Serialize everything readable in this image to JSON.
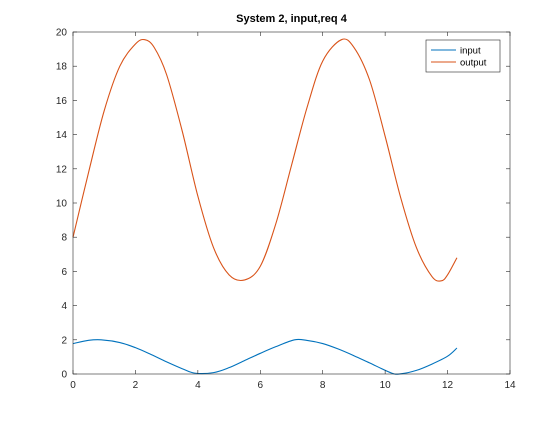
{
  "chart_data": {
    "type": "line",
    "title": "System 2, input,req 4",
    "xlabel": "",
    "ylabel": "",
    "xlim": [
      0,
      14
    ],
    "ylim": [
      0,
      20
    ],
    "xticks": [
      0,
      2,
      4,
      6,
      8,
      10,
      12,
      14
    ],
    "yticks": [
      0,
      2,
      4,
      6,
      8,
      10,
      12,
      14,
      16,
      18,
      20
    ],
    "grid": false,
    "box": true,
    "legend_location": "top-right",
    "series": [
      {
        "name": "input",
        "color": "#0072BD",
        "x": [
          0,
          0.5,
          0.9,
          1.5,
          2,
          2.5,
          3,
          3.5,
          3.9,
          4.5,
          5,
          5.5,
          6,
          6.5,
          7.1,
          7.5,
          8,
          8.5,
          9,
          9.5,
          10.2,
          10.5,
          11,
          11.5,
          12,
          12.3
        ],
        "y": [
          1.78,
          1.97,
          2.0,
          1.84,
          1.54,
          1.14,
          0.71,
          0.31,
          0.05,
          0.08,
          0.37,
          0.79,
          1.21,
          1.6,
          2.0,
          1.96,
          1.78,
          1.46,
          1.07,
          0.65,
          0.06,
          0.01,
          0.21,
          0.58,
          1.04,
          1.52
        ]
      },
      {
        "name": "output",
        "color": "#D95319",
        "x": [
          0,
          0.5,
          1,
          1.5,
          2,
          2.3,
          2.6,
          3,
          3.5,
          4,
          4.5,
          5,
          5.5,
          6,
          6.5,
          7,
          7.5,
          8,
          8.6,
          9,
          9.5,
          10,
          10.5,
          11,
          11.5,
          11.8,
          12,
          12.3
        ],
        "y": [
          8.0,
          11.8,
          15.4,
          18.0,
          19.3,
          19.55,
          19.1,
          17.5,
          14.2,
          10.4,
          7.4,
          5.8,
          5.5,
          6.3,
          8.8,
          12.2,
          15.6,
          18.3,
          19.55,
          19.1,
          17.2,
          13.9,
          10.3,
          7.4,
          5.7,
          5.45,
          5.8,
          6.8
        ]
      }
    ]
  },
  "colors": {
    "axes": "#262626",
    "background": "#ffffff"
  }
}
